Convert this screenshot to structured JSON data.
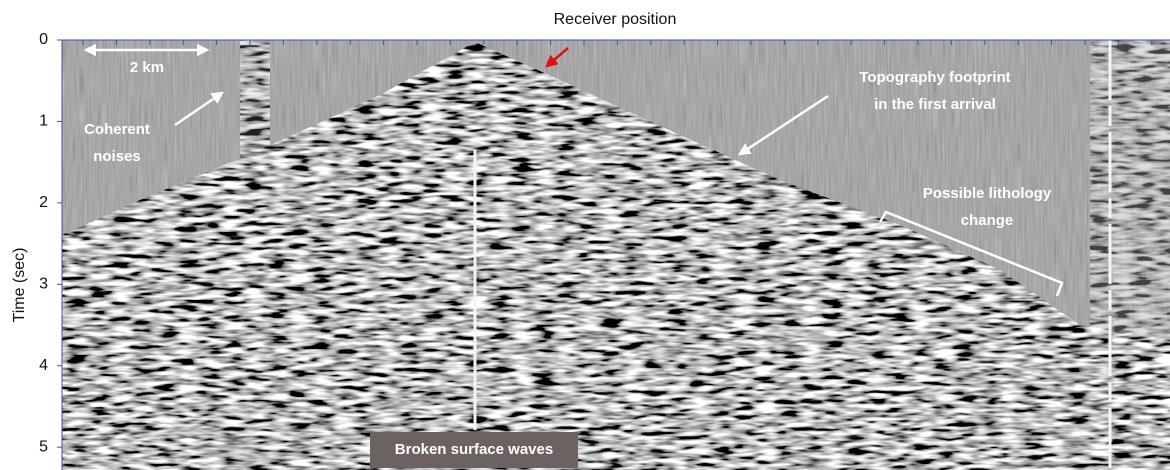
{
  "chart_data": {
    "type": "image",
    "x_label": "Receiver position",
    "y_label": "Time (sec)",
    "ylim": [
      0,
      5.28
    ],
    "yticks": [
      0,
      1,
      2,
      3,
      4,
      5
    ],
    "annotations": [
      {
        "lines": [
          "2 km"
        ]
      },
      {
        "lines": [
          "Coherent",
          "noises"
        ]
      },
      {
        "lines": [
          "Topography footprint",
          "in the first arrival"
        ]
      },
      {
        "lines": [
          "Possible lithology",
          "change"
        ]
      },
      {
        "lines": [
          "Broken surface waves"
        ]
      }
    ]
  }
}
